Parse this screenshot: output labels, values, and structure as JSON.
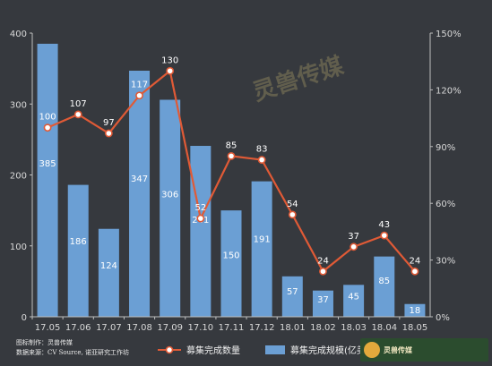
{
  "chart_data": {
    "type": "bar",
    "categories": [
      "17.05",
      "17.06",
      "17.07",
      "17.08",
      "17.09",
      "17.10",
      "17.11",
      "17.12",
      "18.01",
      "18.02",
      "18.03",
      "18.04",
      "18.05"
    ],
    "series": [
      {
        "name": "募集完成规模(亿美元)",
        "type": "bar",
        "axis": "left",
        "values": [
          385,
          186,
          124,
          347,
          306,
          241,
          150,
          191,
          57,
          37,
          45,
          85,
          18
        ],
        "color": "#6b9fd4"
      },
      {
        "name": "募集完成数量",
        "type": "line",
        "axis": "right",
        "values": [
          100,
          107,
          97,
          117,
          130,
          52,
          85,
          83,
          54,
          24,
          37,
          43,
          24
        ],
        "color": "#e05a36"
      }
    ],
    "left_axis": {
      "ylim": [
        0,
        400
      ],
      "ticks": [
        "0",
        "100",
        "200",
        "300",
        "400"
      ]
    },
    "right_axis": {
      "ylim": [
        0,
        150
      ],
      "ticks": [
        "0%",
        "30%",
        "60%",
        "90%",
        "120%",
        "150%"
      ]
    },
    "grid": false,
    "legend_position": "bottom"
  },
  "footer": {
    "line1": "图标制作：灵兽传媒",
    "line2": "数据来源：CV Source, 诺亚研究工作坊"
  },
  "logo": {
    "name": "灵兽传媒"
  },
  "watermark": {
    "text": "灵兽传媒"
  }
}
